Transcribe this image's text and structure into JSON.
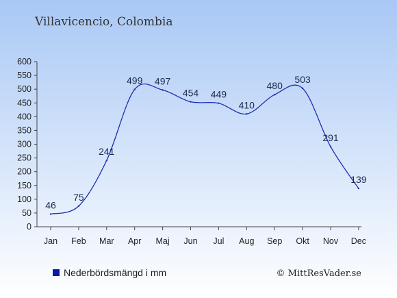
{
  "title": "Villavicencio, Colombia",
  "legend_label": "Nederbördsmängd i mm",
  "copyright": "© MittResVader.se",
  "colors": {
    "line": "#1a2fb0",
    "legend_swatch": "#0a1aa8",
    "bg_top": "#a9c8f5",
    "bg_bottom": "#ffffff",
    "text": "#222222",
    "value_label": "#1c2a50"
  },
  "chart_data": {
    "type": "line",
    "categories": [
      "Jan",
      "Feb",
      "Mar",
      "Apr",
      "Maj",
      "Jun",
      "Jul",
      "Aug",
      "Sep",
      "Okt",
      "Nov",
      "Dec"
    ],
    "series": [
      {
        "name": "Nederbördsmängd i mm",
        "values": [
          46,
          75,
          241,
          499,
          497,
          454,
          449,
          410,
          480,
          503,
          291,
          139
        ]
      }
    ],
    "value_labels": [
      "46",
      "75",
      "241",
      "499",
      "497",
      "454",
      "449",
      "410",
      "480",
      "503",
      "291",
      "139"
    ],
    "ylim": [
      0,
      600
    ],
    "yticks": [
      0,
      50,
      100,
      150,
      200,
      250,
      300,
      350,
      400,
      450,
      500,
      550,
      600
    ],
    "legend_position": "bottom-left",
    "grid": false
  }
}
